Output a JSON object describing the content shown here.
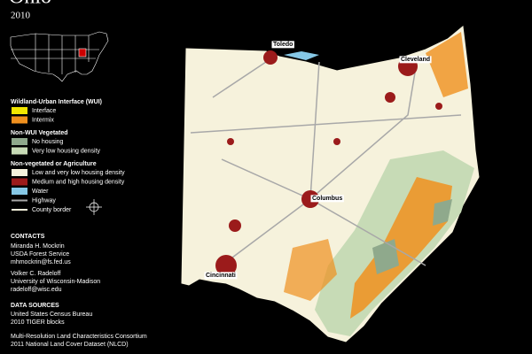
{
  "header": {
    "title": "Ohio",
    "year": "2010"
  },
  "legend": {
    "sections": [
      {
        "title": "Wildland-Urban Interface (WUI)",
        "items": [
          {
            "label": "Interface",
            "color": "#f2e600",
            "kind": "fill"
          },
          {
            "label": "Intermix",
            "color": "#f0901e",
            "kind": "fill"
          }
        ]
      },
      {
        "title": "Non-WUI Vegetated",
        "items": [
          {
            "label": "No housing",
            "color": "#8fa98c",
            "kind": "fill"
          },
          {
            "label": "Very low housing density",
            "color": "#c7dbb6",
            "kind": "fill"
          }
        ]
      },
      {
        "title": "Non-vegetated or Agriculture",
        "items": [
          {
            "label": "Low and very low housing density",
            "color": "#f6f2dc",
            "kind": "fill"
          },
          {
            "label": "Medium and high housing density",
            "color": "#9b1b1b",
            "kind": "fill"
          },
          {
            "label": "Water",
            "color": "#86c8e6",
            "kind": "fill"
          },
          {
            "label": "Highway",
            "color": "#a8a8a8",
            "kind": "line"
          },
          {
            "label": "County border",
            "color": "#f6f2dc",
            "kind": "line"
          }
        ]
      }
    ]
  },
  "contacts": {
    "title": "CONTACTS",
    "people": [
      [
        "Miranda H. Mockrin",
        "USDA Forest Service",
        "mhmockrin@fs.fed.us"
      ],
      [
        "Volker C. Radeloff",
        "University of Wisconsin-Madison",
        "radeloff@wisc.edu"
      ]
    ]
  },
  "data_sources": {
    "title": "DATA SOURCES",
    "sources": [
      [
        "United States Census Bureau",
        "2010 TIGER blocks"
      ],
      [
        "Multi-Resolution Land Characteristics Consortium",
        "2011 National Land Cover Dataset (NLCD)"
      ]
    ]
  },
  "cities": [
    "Toledo",
    "Cleveland",
    "Columbus",
    "Cincinnati"
  ]
}
